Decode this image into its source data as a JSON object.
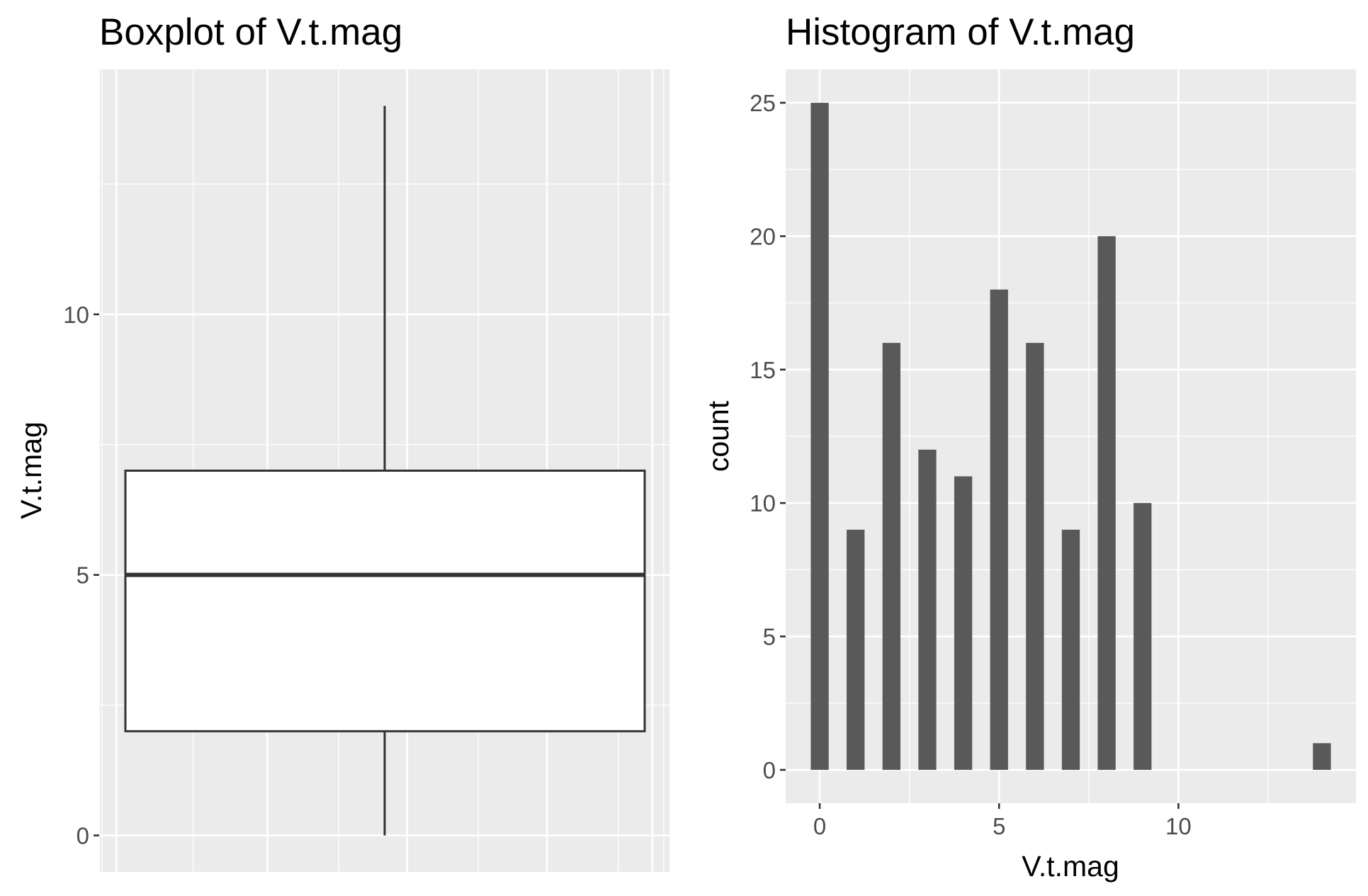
{
  "colors": {
    "panel_background": "#ebebeb",
    "grid_line": "#ffffff",
    "bar_fill": "#595959",
    "box_fill": "#ffffff",
    "box_line": "#333333",
    "tick_text": "#4d4d4d"
  },
  "chart_data": [
    {
      "type": "boxplot",
      "title": "Boxplot of V.t.mag",
      "xlabel": "",
      "ylabel": "V.t.mag",
      "y_ticks": [
        0,
        5,
        10
      ],
      "y_tick_labels": [
        "0",
        "5",
        "10"
      ],
      "ylim": [
        -0.7,
        14.7
      ],
      "grid": true,
      "box": {
        "min": 0,
        "q1": 2,
        "median": 5,
        "q3": 7,
        "max": 14
      }
    },
    {
      "type": "bar",
      "title": "Histogram of V.t.mag",
      "xlabel": "V.t.mag",
      "ylabel": "count",
      "x_ticks": [
        0,
        5,
        10
      ],
      "x_tick_labels": [
        "0",
        "5",
        "10"
      ],
      "y_ticks": [
        0,
        5,
        10,
        15,
        20,
        25
      ],
      "y_tick_labels": [
        "0",
        "5",
        "10",
        "15",
        "20",
        "25"
      ],
      "xlim": [
        -0.95,
        14.95
      ],
      "ylim": [
        -1.25,
        26.25
      ],
      "grid": true,
      "bar_width": 0.5,
      "x": [
        0,
        1,
        2,
        3,
        4,
        5,
        6,
        7,
        8,
        9,
        14
      ],
      "values": [
        25,
        9,
        16,
        12,
        11,
        18,
        16,
        9,
        20,
        10,
        1
      ]
    }
  ]
}
